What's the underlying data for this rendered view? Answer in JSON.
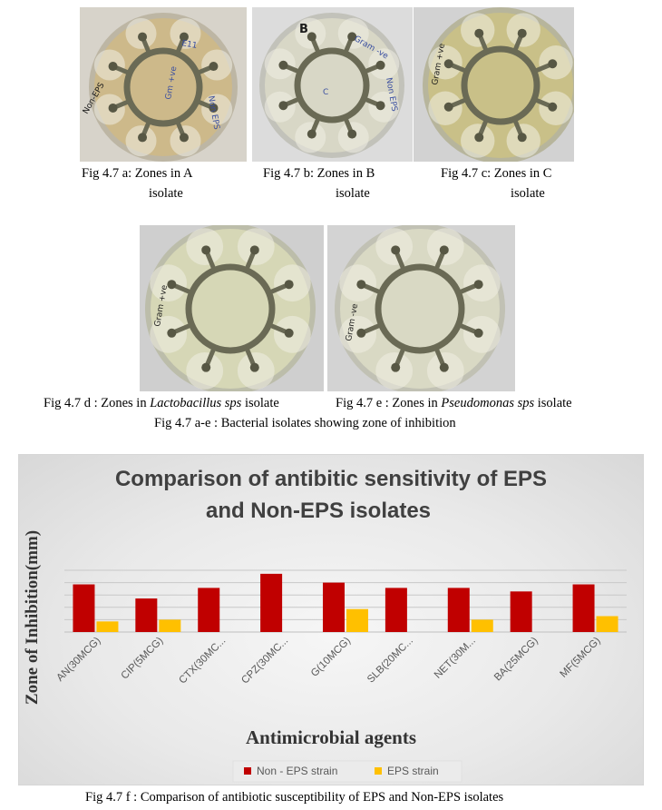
{
  "figures": [
    {
      "id": "a",
      "caption_line1": "Fig 4.7 a: Zones in A",
      "caption_line2": "isolate",
      "plate_labels": [
        "Non-EPS",
        "E11",
        "Non EPS",
        "Gm +ve"
      ]
    },
    {
      "id": "b",
      "caption_line1": "Fig 4.7 b: Zones in  B",
      "caption_line2": "isolate",
      "plate_labels": [
        "B",
        "Gram -ve",
        "Non EPS",
        "C"
      ]
    },
    {
      "id": "c",
      "caption_line1": "Fig 4.7 c: Zones in C",
      "caption_line2": "isolate",
      "plate_labels": [
        "Gram +ve"
      ]
    },
    {
      "id": "d",
      "caption_prefix": "Fig 4.7 d : Zones in ",
      "caption_italic": "Lactobacillus sps",
      "caption_suffix": " isolate",
      "plate_labels": [
        "Gram +ve"
      ]
    },
    {
      "id": "e",
      "caption_prefix": "Fig 4.7 e : Zones in ",
      "caption_italic": "Pseudomonas sps",
      "caption_suffix": " isolate",
      "plate_labels": [
        "Gram -ve"
      ]
    }
  ],
  "group_caption": "Fig 4.7 a-e : Bacterial isolates showing zone of inhibition",
  "chart_caption": "Fig 4.7 f :  Comparison of antibiotic susceptibility of EPS and Non-EPS isolates",
  "chart_data": {
    "type": "bar",
    "title_line1": "Comparison of antibitic sensitivity of EPS",
    "title_line2": "and Non-EPS isolates",
    "xlabel": "Antimicrobial agents",
    "ylabel": "Zone of Inhibition(mm)",
    "categories": [
      "AN(30MCG)",
      "CIP(5MCG)",
      "CTX(30MC...",
      "CPZ(30MC...",
      "G(10MCG)",
      "SLB(20MC...",
      "NET(30M...",
      "BA(25MCG)",
      "MF(5MCG)"
    ],
    "series": [
      {
        "name": "Non - EPS strain",
        "color": "#c00000",
        "values": [
          27,
          19,
          25,
          33,
          28,
          25,
          25,
          23,
          27
        ]
      },
      {
        "name": "EPS strain",
        "color": "#ffc000",
        "values": [
          6,
          7,
          0,
          0,
          13,
          0,
          7,
          0,
          9
        ]
      }
    ],
    "ylim": [
      0,
      35
    ],
    "grid": true,
    "legend": "bottom"
  }
}
